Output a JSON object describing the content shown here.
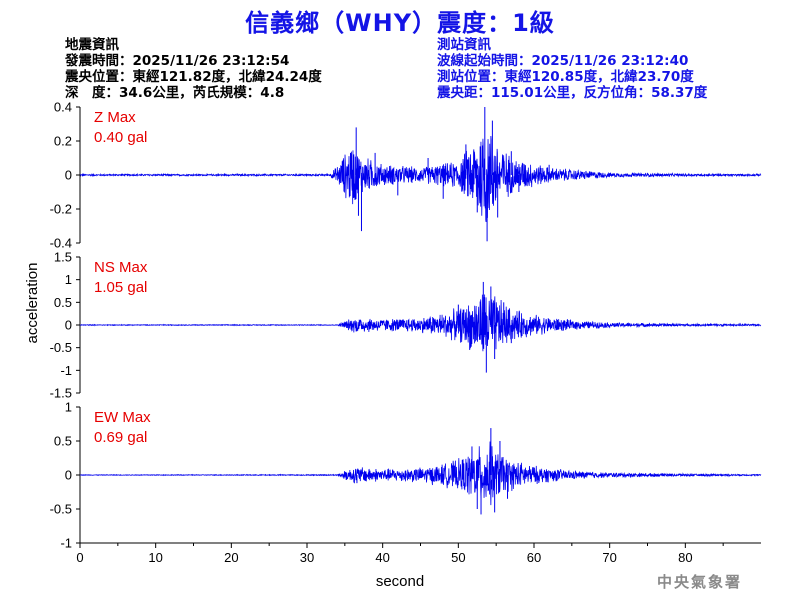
{
  "header": {
    "title": "信義鄉（WHY）震度：1級",
    "quake_info": [
      "地震資訊",
      "發震時間：2025/11/26 23:12:54",
      "震央位置：東經121.82度，北緯24.24度",
      "深　度：34.6公里，芮氏規模：4.8"
    ],
    "station_info": [
      "測站資訊",
      "波線起始時間：2025/11/26 23:12:40",
      "測站位置：東經120.85度，北緯23.70度",
      "震央距：115.01公里，反方位角：58.37度"
    ]
  },
  "watermark": "中央氣象署",
  "colors": {
    "title": "#1414e6",
    "trace": "#0000ee",
    "max_label": "#e60000",
    "watermark": "#8a8a8a"
  },
  "chart_data": {
    "type": "line",
    "xlabel": "second",
    "ylabel": "acceleration",
    "xlim": [
      0,
      90
    ],
    "x_ticks": [
      0,
      10,
      20,
      30,
      40,
      50,
      60,
      70,
      80
    ],
    "panels": [
      {
        "name": "Z",
        "max_label": "Z Max",
        "max_value": "0.40 gal",
        "ylim": [
          -0.4,
          0.4
        ],
        "y_ticks": [
          0.4,
          0.2,
          0,
          -0.2,
          -0.4
        ],
        "y_tick_labels": [
          "0.4",
          "0.2",
          "0",
          "-0.2",
          "-0.4"
        ],
        "envelope": [
          [
            0,
            0.005
          ],
          [
            33,
            0.006
          ],
          [
            34,
            0.06
          ],
          [
            35,
            0.14
          ],
          [
            36,
            0.22
          ],
          [
            37,
            0.13
          ],
          [
            40,
            0.07
          ],
          [
            45,
            0.05
          ],
          [
            50,
            0.09
          ],
          [
            52,
            0.22
          ],
          [
            53.5,
            0.38
          ],
          [
            55,
            0.22
          ],
          [
            57,
            0.12
          ],
          [
            62,
            0.05
          ],
          [
            70,
            0.015
          ],
          [
            80,
            0.008
          ],
          [
            90,
            0.006
          ]
        ],
        "peaks": [
          [
            36.5,
            0.28
          ],
          [
            36.8,
            -0.24
          ],
          [
            37.2,
            -0.33
          ],
          [
            39,
            0.13
          ],
          [
            42,
            -0.12
          ],
          [
            46,
            0.1
          ],
          [
            48,
            -0.14
          ],
          [
            51,
            0.18
          ],
          [
            52.5,
            -0.22
          ],
          [
            53.5,
            0.4
          ],
          [
            53.8,
            -0.39
          ],
          [
            54.5,
            0.32
          ],
          [
            55.2,
            -0.25
          ],
          [
            57,
            0.14
          ],
          [
            58,
            -0.1
          ],
          [
            62,
            0.06
          ]
        ]
      },
      {
        "name": "NS",
        "max_label": "NS Max",
        "max_value": "1.05 gal",
        "ylim": [
          -1.5,
          1.5
        ],
        "y_ticks": [
          1.5,
          1,
          0.5,
          0,
          -0.5,
          -1,
          -1.5
        ],
        "y_tick_labels": [
          "1.5",
          "1",
          "0.5",
          "0",
          "-0.5",
          "-1",
          "-1.5"
        ],
        "envelope": [
          [
            0,
            0.01
          ],
          [
            34,
            0.01
          ],
          [
            35,
            0.1
          ],
          [
            36.5,
            0.2
          ],
          [
            40,
            0.15
          ],
          [
            45,
            0.18
          ],
          [
            48,
            0.3
          ],
          [
            50,
            0.4
          ],
          [
            52,
            0.6
          ],
          [
            53.5,
            0.9
          ],
          [
            55,
            0.7
          ],
          [
            57,
            0.4
          ],
          [
            60,
            0.25
          ],
          [
            65,
            0.12
          ],
          [
            70,
            0.06
          ],
          [
            80,
            0.03
          ],
          [
            90,
            0.02
          ]
        ],
        "peaks": [
          [
            50,
            0.45
          ],
          [
            51.5,
            -0.55
          ],
          [
            53.3,
            0.95
          ],
          [
            53.7,
            -1.05
          ],
          [
            54.3,
            0.85
          ],
          [
            54.8,
            -0.75
          ],
          [
            56,
            0.5
          ],
          [
            57,
            -0.4
          ]
        ]
      },
      {
        "name": "EW",
        "max_label": "EW Max",
        "max_value": "0.69 gal",
        "ylim": [
          -1,
          1
        ],
        "y_ticks": [
          1,
          0.5,
          0,
          -0.5,
          -1
        ],
        "y_tick_labels": [
          "1",
          "0.5",
          "0",
          "-0.5",
          "-1"
        ],
        "envelope": [
          [
            0,
            0.005
          ],
          [
            34,
            0.008
          ],
          [
            35,
            0.08
          ],
          [
            36.5,
            0.14
          ],
          [
            40,
            0.1
          ],
          [
            45,
            0.12
          ],
          [
            48,
            0.18
          ],
          [
            50,
            0.25
          ],
          [
            52,
            0.4
          ],
          [
            54,
            0.55
          ],
          [
            55,
            0.4
          ],
          [
            57,
            0.25
          ],
          [
            60,
            0.15
          ],
          [
            65,
            0.07
          ],
          [
            70,
            0.04
          ],
          [
            80,
            0.02
          ],
          [
            90,
            0.01
          ]
        ],
        "peaks": [
          [
            36.6,
            -0.12
          ],
          [
            51.8,
            0.42
          ],
          [
            52.5,
            -0.5
          ],
          [
            54.3,
            0.69
          ],
          [
            54.8,
            -0.55
          ],
          [
            55.5,
            0.5
          ],
          [
            53,
            -0.58
          ],
          [
            56.5,
            -0.35
          ]
        ]
      }
    ]
  }
}
